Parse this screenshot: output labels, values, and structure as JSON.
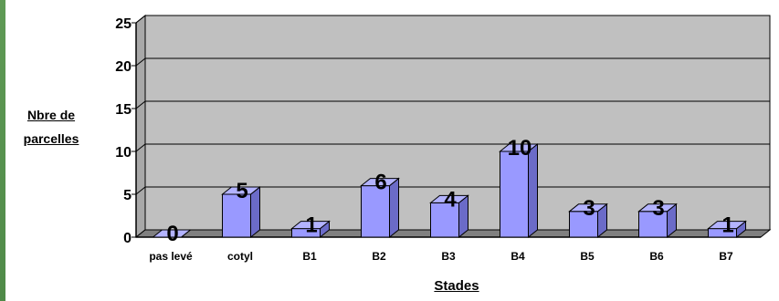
{
  "chart_data": {
    "type": "bar",
    "categories": [
      "pas levé",
      "cotyl",
      "B1",
      "B2",
      "B3",
      "B4",
      "B5",
      "B6",
      "B7"
    ],
    "values": [
      0,
      5,
      1,
      6,
      4,
      10,
      3,
      3,
      1
    ],
    "data_labels": [
      "0",
      "5",
      "1",
      "6",
      "4",
      "10",
      "3",
      "3",
      "1"
    ],
    "xlabel": "Stades",
    "ylabel": "Nbre de parcelles",
    "ylabel_lines": [
      "Nbre de",
      "parcelles"
    ],
    "ylim": [
      0,
      25
    ],
    "yticks": [
      "0",
      "5",
      "10",
      "15",
      "20",
      "25"
    ],
    "grid": true,
    "legend": "none",
    "style": "3d-bar"
  },
  "colors": {
    "plot_background": "#c0c0c0",
    "floor": "#808080",
    "bar_front": "#9999ff",
    "bar_side": "#6b6bc8",
    "bar_top": "#b3b3ff",
    "outline": "#000000"
  }
}
